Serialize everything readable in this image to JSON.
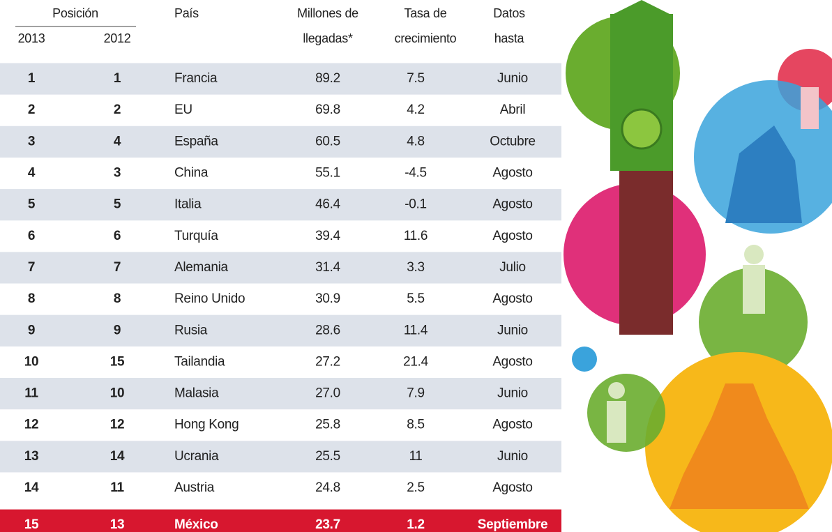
{
  "table": {
    "header": {
      "position": "Posición",
      "year_2013": "2013",
      "year_2012": "2012",
      "country": "País",
      "arrivals": "Millones de llegadas*",
      "growth": "Tasa de crecimiento",
      "data_until": "Datos hasta"
    },
    "rows": [
      [
        "1",
        "1",
        "Francia",
        "89.2",
        "7.5",
        "Junio"
      ],
      [
        "2",
        "2",
        "EU",
        "69.8",
        "4.2",
        "Abril"
      ],
      [
        "3",
        "4",
        "España",
        "60.5",
        "4.8",
        "Octubre"
      ],
      [
        "4",
        "3",
        "China",
        "55.1",
        "-4.5",
        "Agosto"
      ],
      [
        "5",
        "5",
        "Italia",
        "46.4",
        "-0.1",
        "Agosto"
      ],
      [
        "6",
        "6",
        "Turquía",
        "39.4",
        "11.6",
        "Agosto"
      ],
      [
        "7",
        "7",
        "Alemania",
        "31.4",
        "3.3",
        "Julio"
      ],
      [
        "8",
        "8",
        "Reino Unido",
        "30.9",
        "5.5",
        "Agosto"
      ],
      [
        "9",
        "9",
        "Rusia",
        "28.6",
        "11.4",
        "Junio"
      ],
      [
        "10",
        "15",
        "Tailandia",
        "27.2",
        "21.4",
        "Agosto"
      ],
      [
        "11",
        "10",
        "Malasia",
        "27.0",
        "7.9",
        "Junio"
      ],
      [
        "12",
        "12",
        "Hong Kong",
        "25.8",
        "8.5",
        "Agosto"
      ],
      [
        "13",
        "14",
        "Ucrania",
        "25.5",
        "11",
        "Junio"
      ],
      [
        "14",
        "11",
        "Austria",
        "24.8",
        "2.5",
        "Agosto"
      ],
      [
        "15",
        "13",
        "México",
        "23.7",
        "1.2",
        "Septiembre"
      ]
    ],
    "highlight_row": 14
  }
}
